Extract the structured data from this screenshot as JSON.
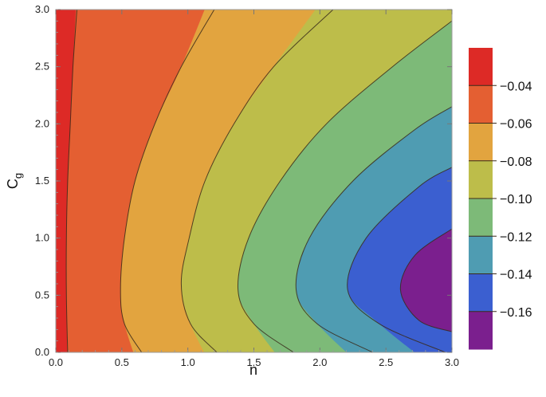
{
  "chart_data": {
    "type": "contour",
    "xlabel": "n",
    "ylabel": "C",
    "ylabel_subscript": "g",
    "xlim": [
      0.0,
      3.0
    ],
    "ylim": [
      0.0,
      3.0
    ],
    "x_ticks": [
      "0.0",
      "0.5",
      "1.0",
      "1.5",
      "2.0",
      "2.5",
      "3.0"
    ],
    "y_ticks": [
      "0.0",
      "0.5",
      "1.0",
      "1.5",
      "2.0",
      "2.5",
      "3.0"
    ],
    "contour_levels": [
      -0.04,
      -0.06,
      -0.08,
      -0.1,
      -0.12,
      -0.14,
      -0.16
    ],
    "bands": [
      {
        "label": "> -0.04",
        "color": "#dd2a26"
      },
      {
        "label": "-0.04 to -0.06",
        "color": "#e45f32"
      },
      {
        "label": "-0.06 to -0.08",
        "color": "#e2a43f"
      },
      {
        "label": "-0.08 to -0.10",
        "color": "#bdbd4a"
      },
      {
        "label": "-0.10 to -0.12",
        "color": "#7dba78"
      },
      {
        "label": "-0.12 to -0.14",
        "color": "#4f9cb2"
      },
      {
        "label": "-0.14 to -0.16",
        "color": "#3b5fd0"
      },
      {
        "label": "< -0.16",
        "color": "#7b1f8e"
      }
    ],
    "colorbar": {
      "labels": [
        "−0.04",
        "−0.06",
        "−0.08",
        "−0.10",
        "−0.12",
        "−0.14",
        "−0.16"
      ],
      "placement": "right"
    },
    "contours": [
      {
        "level": -0.04,
        "points": [
          [
            0.09,
            0.0
          ],
          [
            0.08,
            0.5
          ],
          [
            0.08,
            1.0
          ],
          [
            0.09,
            1.5
          ],
          [
            0.11,
            2.0
          ],
          [
            0.13,
            2.5
          ],
          [
            0.16,
            3.0
          ]
        ]
      },
      {
        "level": -0.06,
        "points": [
          [
            0.65,
            0.0
          ],
          [
            0.52,
            0.25
          ],
          [
            0.49,
            0.55
          ],
          [
            0.52,
            1.0
          ],
          [
            0.6,
            1.5
          ],
          [
            0.75,
            2.0
          ],
          [
            0.95,
            2.5
          ],
          [
            1.2,
            3.0
          ]
        ]
      },
      {
        "level": -0.08,
        "points": [
          [
            1.22,
            0.0
          ],
          [
            1.02,
            0.25
          ],
          [
            0.95,
            0.6
          ],
          [
            1.01,
            1.0
          ],
          [
            1.13,
            1.5
          ],
          [
            1.35,
            2.0
          ],
          [
            1.65,
            2.5
          ],
          [
            2.1,
            3.0
          ]
        ]
      },
      {
        "level": -0.1,
        "points": [
          [
            1.8,
            0.0
          ],
          [
            1.5,
            0.25
          ],
          [
            1.38,
            0.55
          ],
          [
            1.46,
            1.0
          ],
          [
            1.7,
            1.5
          ],
          [
            2.05,
            2.0
          ],
          [
            2.55,
            2.5
          ],
          [
            3.0,
            2.9
          ]
        ]
      },
      {
        "level": -0.12,
        "points": [
          [
            2.4,
            0.0
          ],
          [
            1.98,
            0.25
          ],
          [
            1.82,
            0.55
          ],
          [
            1.92,
            1.0
          ],
          [
            2.25,
            1.5
          ],
          [
            2.72,
            1.95
          ],
          [
            3.0,
            2.15
          ]
        ]
      },
      {
        "level": -0.14,
        "points": [
          [
            2.95,
            0.0
          ],
          [
            2.45,
            0.25
          ],
          [
            2.21,
            0.55
          ],
          [
            2.35,
            1.0
          ],
          [
            2.75,
            1.45
          ],
          [
            3.0,
            1.62
          ]
        ]
      },
      {
        "level": -0.16,
        "points": [
          [
            3.0,
            0.18
          ],
          [
            2.75,
            0.28
          ],
          [
            2.61,
            0.55
          ],
          [
            2.72,
            0.85
          ],
          [
            3.0,
            1.08
          ]
        ]
      }
    ]
  }
}
